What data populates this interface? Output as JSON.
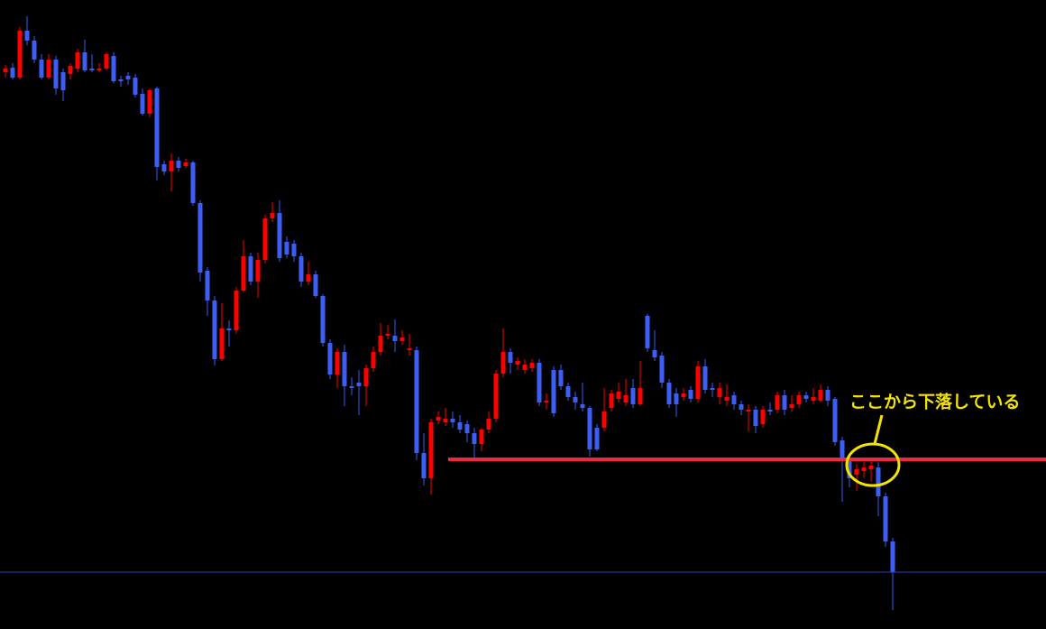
{
  "chart_data": {
    "type": "candlestick",
    "up_color": "#ff0000",
    "down_color": "#3d5ef5",
    "background": "#000000",
    "ylim": [
      0,
      697
    ],
    "open": [
      617,
      622,
      611,
      663,
      652,
      631,
      611,
      631,
      617,
      615,
      621,
      639,
      621,
      619,
      621,
      635,
      609,
      613,
      611,
      593,
      571,
      599,
      515,
      507,
      519,
      513,
      517,
      472,
      397,
      364,
      299,
      333,
      331,
      375,
      413,
      385,
      409,
      455,
      461,
      429,
      427,
      413,
      385,
      393,
      369,
      317,
      282,
      307,
      269,
      273,
      269,
      289,
      307,
      325,
      325,
      319,
      309,
      309,
      195,
      167,
      231,
      229,
      233,
      229,
      227,
      217,
      205,
      221,
      233,
      283,
      307,
      293,
      287,
      289,
      295,
      251,
      287,
      287,
      269,
      257,
      249,
      245,
      223,
      223,
      245,
      255,
      251,
      267,
      249,
      347,
      309,
      303,
      273,
      261,
      257,
      265,
      255,
      291,
      267,
      257,
      253,
      259,
      249,
      241,
      243,
      227,
      243,
      243,
      259,
      245,
      249,
      259,
      253,
      253,
      265,
      255,
      209,
      187,
      171,
      175,
      177,
      179,
      147,
      97
    ],
    "high": [
      625,
      627,
      667,
      679,
      657,
      637,
      637,
      635,
      621,
      627,
      643,
      653,
      637,
      627,
      639,
      639,
      613,
      617,
      615,
      599,
      599,
      601,
      519,
      527,
      523,
      521,
      519,
      475,
      401,
      369,
      361,
      342,
      379,
      431,
      417,
      417,
      459,
      473,
      475,
      435,
      431,
      417,
      407,
      397,
      371,
      321,
      311,
      315,
      279,
      287,
      293,
      313,
      339,
      337,
      343,
      331,
      327,
      313,
      217,
      233,
      241,
      245,
      241,
      237,
      231,
      223,
      223,
      241,
      287,
      333,
      311,
      301,
      299,
      299,
      299,
      261,
      291,
      293,
      273,
      263,
      273,
      247,
      227,
      267,
      265,
      273,
      277,
      277,
      297,
      349,
      331,
      307,
      277,
      267,
      267,
      269,
      297,
      299,
      273,
      273,
      271,
      263,
      253,
      249,
      247,
      247,
      251,
      263,
      265,
      259,
      263,
      263,
      267,
      271,
      269,
      257,
      213,
      191,
      183,
      185,
      185,
      185,
      151,
      101
    ],
    "low": [
      611,
      609,
      609,
      647,
      627,
      609,
      609,
      592,
      585,
      609,
      617,
      617,
      617,
      617,
      619,
      605,
      601,
      603,
      589,
      569,
      567,
      497,
      503,
      485,
      507,
      511,
      469,
      385,
      347,
      292,
      297,
      313,
      327,
      373,
      381,
      367,
      405,
      451,
      407,
      411,
      407,
      379,
      381,
      367,
      313,
      277,
      267,
      247,
      259,
      237,
      247,
      285,
      303,
      321,
      307,
      315,
      303,
      187,
      159,
      149,
      227,
      225,
      223,
      217,
      207,
      187,
      197,
      217,
      229,
      279,
      283,
      287,
      283,
      285,
      247,
      243,
      235,
      265,
      253,
      243,
      241,
      191,
      197,
      219,
      241,
      251,
      247,
      245,
      247,
      307,
      297,
      267,
      245,
      235,
      253,
      251,
      251,
      261,
      257,
      249,
      247,
      243,
      237,
      219,
      217,
      223,
      237,
      239,
      237,
      241,
      245,
      251,
      249,
      251,
      247,
      203,
      141,
      157,
      153,
      167,
      163,
      125,
      91,
      21
    ],
    "close": [
      621,
      611,
      663,
      652,
      631,
      611,
      631,
      599,
      597,
      624,
      639,
      619,
      619,
      621,
      637,
      607,
      607,
      609,
      592,
      571,
      597,
      512,
      507,
      519,
      511,
      517,
      472,
      395,
      364,
      299,
      333,
      331,
      375,
      413,
      385,
      409,
      455,
      461,
      411,
      415,
      413,
      385,
      393,
      369,
      317,
      282,
      307,
      269,
      267,
      269,
      289,
      307,
      325,
      327,
      319,
      323,
      311,
      195,
      167,
      229,
      235,
      233,
      229,
      221,
      217,
      205,
      221,
      233,
      283,
      307,
      295,
      297,
      293,
      295,
      251,
      253,
      239,
      269,
      257,
      251,
      245,
      199,
      199,
      241,
      261,
      263,
      259,
      249,
      267,
      311,
      301,
      273,
      249,
      249,
      261,
      255,
      291,
      265,
      265,
      267,
      257,
      249,
      243,
      243,
      225,
      243,
      241,
      259,
      243,
      249,
      259,
      255,
      257,
      265,
      253,
      207,
      187,
      167,
      177,
      179,
      181,
      147,
      97,
      63
    ],
    "hlines": [
      {
        "value": 188,
        "color": "#f0283c"
      },
      {
        "value": 63,
        "color": "#2b3fb5"
      }
    ],
    "annotation": "ここから下落している"
  }
}
